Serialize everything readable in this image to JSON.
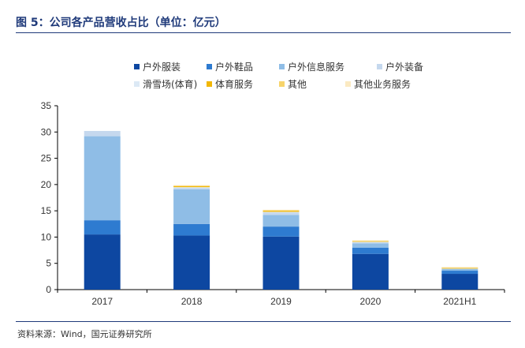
{
  "figure": {
    "title": "图 5：公司各产品营收占比（单位：亿元）",
    "source": "资料来源：Wind，国元证券研究所"
  },
  "chart_data": {
    "type": "bar",
    "stacked": true,
    "categories": [
      "2017",
      "2018",
      "2019",
      "2020",
      "2021H1"
    ],
    "ylim": [
      0,
      35
    ],
    "yticks": [
      0,
      5,
      10,
      15,
      20,
      25,
      30,
      35
    ],
    "grid": false,
    "legend_position": "top",
    "series": [
      {
        "name": "户外服装",
        "color": "#0d47a1",
        "values": [
          10.5,
          10.3,
          10.1,
          6.8,
          3.0
        ]
      },
      {
        "name": "户外鞋品",
        "color": "#2e7bd0",
        "values": [
          2.7,
          2.2,
          1.9,
          1.2,
          0.6
        ]
      },
      {
        "name": "户外信息服务",
        "color": "#8fbde6",
        "values": [
          16.0,
          6.6,
          2.2,
          0.8,
          0.3
        ]
      },
      {
        "name": "户外装备",
        "color": "#c5d8ee",
        "values": [
          1.0,
          0.3,
          0.5,
          0.2,
          0.1
        ]
      },
      {
        "name": "滑雪场(体育)",
        "color": "#dce9f5",
        "values": [
          0.0,
          0.1,
          0.1,
          0.1,
          0.0
        ]
      },
      {
        "name": "体育服务",
        "color": "#f2b705",
        "values": [
          0.0,
          0.2,
          0.2,
          0.1,
          0.1
        ]
      },
      {
        "name": "其他",
        "color": "#f7d46b",
        "values": [
          0.0,
          0.1,
          0.1,
          0.1,
          0.1
        ]
      },
      {
        "name": "其他业务服务",
        "color": "#fbeac2",
        "values": [
          0.0,
          0.1,
          0.1,
          0.1,
          0.1
        ]
      }
    ]
  }
}
